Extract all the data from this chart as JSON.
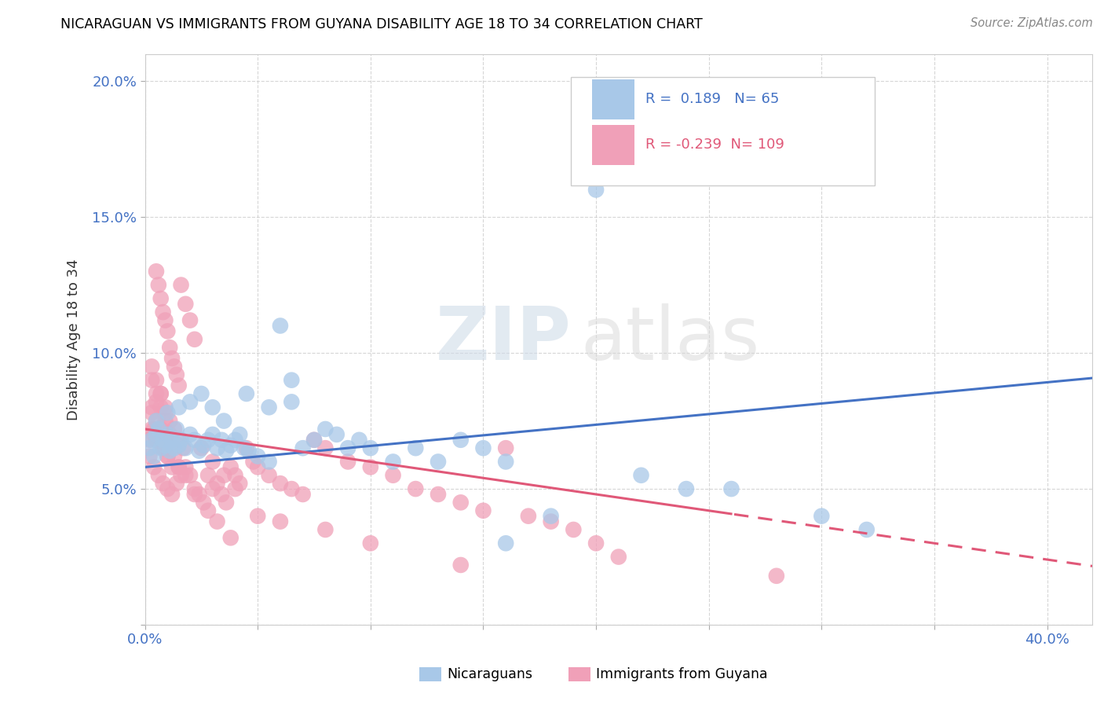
{
  "title": "NICARAGUAN VS IMMIGRANTS FROM GUYANA DISABILITY AGE 18 TO 34 CORRELATION CHART",
  "source": "Source: ZipAtlas.com",
  "ylabel": "Disability Age 18 to 34",
  "xlim": [
    0.0,
    0.42
  ],
  "ylim": [
    0.0,
    0.21
  ],
  "xticks": [
    0.0,
    0.05,
    0.1,
    0.15,
    0.2,
    0.25,
    0.3,
    0.35,
    0.4
  ],
  "yticks": [
    0.0,
    0.05,
    0.1,
    0.15,
    0.2
  ],
  "blue_color": "#A8C8E8",
  "pink_color": "#F0A0B8",
  "blue_line_color": "#4472C4",
  "pink_line_color": "#E05878",
  "watermark_zip": "ZIP",
  "watermark_atlas": "atlas",
  "blue_r": "0.189",
  "blue_n": "65",
  "pink_r": "-0.239",
  "pink_n": "109",
  "blue_intercept": 0.058,
  "blue_slope": 0.078,
  "pink_intercept": 0.072,
  "pink_slope": -0.12,
  "blue_scatter_x": [
    0.002,
    0.003,
    0.004,
    0.005,
    0.006,
    0.007,
    0.008,
    0.009,
    0.01,
    0.011,
    0.012,
    0.013,
    0.014,
    0.015,
    0.016,
    0.018,
    0.02,
    0.022,
    0.024,
    0.026,
    0.028,
    0.03,
    0.032,
    0.034,
    0.036,
    0.038,
    0.04,
    0.042,
    0.044,
    0.046,
    0.05,
    0.055,
    0.06,
    0.065,
    0.07,
    0.075,
    0.08,
    0.085,
    0.09,
    0.095,
    0.1,
    0.11,
    0.12,
    0.13,
    0.14,
    0.15,
    0.16,
    0.18,
    0.2,
    0.22,
    0.24,
    0.26,
    0.3,
    0.32,
    0.005,
    0.01,
    0.015,
    0.02,
    0.025,
    0.03,
    0.035,
    0.045,
    0.055,
    0.065,
    0.16
  ],
  "blue_scatter_y": [
    0.065,
    0.068,
    0.062,
    0.07,
    0.072,
    0.065,
    0.068,
    0.066,
    0.07,
    0.064,
    0.068,
    0.065,
    0.072,
    0.066,
    0.068,
    0.065,
    0.07,
    0.068,
    0.064,
    0.066,
    0.068,
    0.07,
    0.065,
    0.068,
    0.064,
    0.066,
    0.068,
    0.07,
    0.065,
    0.064,
    0.062,
    0.06,
    0.11,
    0.09,
    0.065,
    0.068,
    0.072,
    0.07,
    0.065,
    0.068,
    0.065,
    0.06,
    0.065,
    0.06,
    0.068,
    0.065,
    0.06,
    0.04,
    0.16,
    0.055,
    0.05,
    0.05,
    0.04,
    0.035,
    0.075,
    0.078,
    0.08,
    0.082,
    0.085,
    0.08,
    0.075,
    0.085,
    0.08,
    0.082,
    0.03
  ],
  "pink_scatter_x": [
    0.002,
    0.003,
    0.004,
    0.005,
    0.006,
    0.007,
    0.008,
    0.009,
    0.01,
    0.011,
    0.012,
    0.013,
    0.014,
    0.015,
    0.016,
    0.018,
    0.02,
    0.022,
    0.003,
    0.005,
    0.007,
    0.009,
    0.011,
    0.013,
    0.015,
    0.017,
    0.003,
    0.005,
    0.007,
    0.009,
    0.002,
    0.004,
    0.006,
    0.008,
    0.01,
    0.012,
    0.014,
    0.016,
    0.018,
    0.02,
    0.022,
    0.024,
    0.026,
    0.028,
    0.03,
    0.032,
    0.034,
    0.036,
    0.038,
    0.04,
    0.042,
    0.045,
    0.048,
    0.05,
    0.055,
    0.06,
    0.065,
    0.07,
    0.075,
    0.08,
    0.09,
    0.1,
    0.11,
    0.12,
    0.13,
    0.14,
    0.15,
    0.16,
    0.17,
    0.18,
    0.19,
    0.2,
    0.21,
    0.005,
    0.008,
    0.01,
    0.015,
    0.004,
    0.006,
    0.008,
    0.01,
    0.012,
    0.003,
    0.005,
    0.007,
    0.009,
    0.011,
    0.025,
    0.03,
    0.035,
    0.04,
    0.05,
    0.06,
    0.08,
    0.1,
    0.14,
    0.28,
    0.003,
    0.005,
    0.007,
    0.009,
    0.011,
    0.013,
    0.015,
    0.018,
    0.022,
    0.028,
    0.032,
    0.038
  ],
  "pink_scatter_y": [
    0.068,
    0.072,
    0.07,
    0.13,
    0.125,
    0.12,
    0.115,
    0.112,
    0.108,
    0.102,
    0.098,
    0.095,
    0.092,
    0.088,
    0.125,
    0.118,
    0.112,
    0.105,
    0.08,
    0.082,
    0.085,
    0.078,
    0.075,
    0.072,
    0.068,
    0.065,
    0.095,
    0.09,
    0.085,
    0.08,
    0.062,
    0.058,
    0.055,
    0.052,
    0.05,
    0.048,
    0.052,
    0.055,
    0.058,
    0.055,
    0.05,
    0.048,
    0.045,
    0.055,
    0.05,
    0.052,
    0.048,
    0.045,
    0.058,
    0.055,
    0.052,
    0.065,
    0.06,
    0.058,
    0.055,
    0.052,
    0.05,
    0.048,
    0.068,
    0.065,
    0.06,
    0.058,
    0.055,
    0.05,
    0.048,
    0.045,
    0.042,
    0.065,
    0.04,
    0.038,
    0.035,
    0.03,
    0.025,
    0.068,
    0.065,
    0.062,
    0.058,
    0.072,
    0.068,
    0.065,
    0.062,
    0.058,
    0.09,
    0.085,
    0.08,
    0.075,
    0.07,
    0.065,
    0.06,
    0.055,
    0.05,
    0.04,
    0.038,
    0.035,
    0.03,
    0.022,
    0.018,
    0.078,
    0.075,
    0.072,
    0.068,
    0.065,
    0.062,
    0.058,
    0.055,
    0.048,
    0.042,
    0.038,
    0.032
  ]
}
